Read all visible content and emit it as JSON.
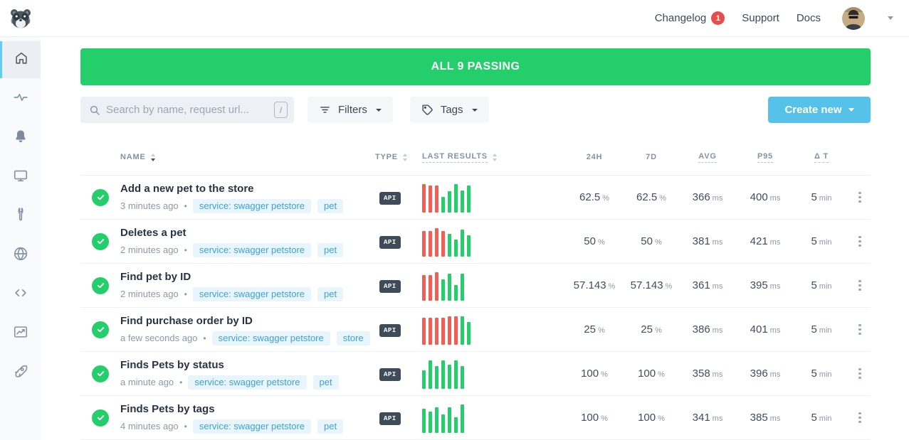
{
  "colors": {
    "green": "#23ce6b",
    "red": "#f35e54",
    "blue": "#56c2ea",
    "tag_blue": "#3ba1d8",
    "badge_red": "#e84c4c"
  },
  "header": {
    "logo": "raccoon-logo",
    "nav": [
      {
        "label": "Changelog",
        "badge": "1"
      },
      {
        "label": "Support"
      },
      {
        "label": "Docs"
      }
    ]
  },
  "sidebar": {
    "items": [
      {
        "icon": "home-icon",
        "active": true
      },
      {
        "icon": "activity-icon"
      },
      {
        "icon": "bell-icon"
      },
      {
        "icon": "monitor-icon"
      },
      {
        "icon": "wrench-icon"
      },
      {
        "icon": "globe-icon"
      },
      {
        "icon": "code-icon"
      },
      {
        "icon": "chart-icon"
      },
      {
        "icon": "rocket-icon"
      }
    ]
  },
  "banner": {
    "text": "ALL 9 PASSING"
  },
  "controls": {
    "search": {
      "placeholder": "Search by name, request url...",
      "value": "",
      "shortcut": "/"
    },
    "filters_label": "Filters",
    "tags_label": "Tags",
    "create_label": "Create new"
  },
  "table": {
    "dot": "•",
    "columns": [
      {
        "label": "NAME",
        "sortable": true,
        "sorted": "desc"
      },
      {
        "label": "TYPE",
        "sortable": true
      },
      {
        "label": "LAST RESULTS",
        "sortable": true,
        "dashed": true
      },
      {
        "label": "24H"
      },
      {
        "label": "7D"
      },
      {
        "label": "AVG",
        "dashed": true
      },
      {
        "label": "P95",
        "dashed": true
      },
      {
        "label": "Δ T",
        "dashed": true
      }
    ],
    "rows": [
      {
        "status": "passing",
        "name": "Add a new pet to the store",
        "time": "3 minutes ago",
        "tags": [
          "service: swagger petstore",
          "pet"
        ],
        "type": "API",
        "bars": [
          [
            "fail",
            1
          ],
          [
            "fail",
            0.95
          ],
          [
            "fail",
            0.95
          ],
          [
            "pass",
            0.55
          ],
          [
            "pass",
            0.75
          ],
          [
            "pass",
            1
          ],
          [
            "pass",
            0.78
          ],
          [
            "pass",
            0.95
          ]
        ],
        "h24": {
          "v": "62.5",
          "u": "%"
        },
        "d7": {
          "v": "62.5",
          "u": "%"
        },
        "avg": {
          "v": "366",
          "u": "ms"
        },
        "p95": {
          "v": "400",
          "u": "ms"
        },
        "dt": {
          "v": "5",
          "u": "min"
        }
      },
      {
        "status": "passing",
        "name": "Deletes a pet",
        "time": "2 minutes ago",
        "tags": [
          "service: swagger petstore",
          "pet"
        ],
        "type": "API",
        "bars": [
          [
            "fail",
            0.9
          ],
          [
            "fail",
            0.9
          ],
          [
            "fail",
            1
          ],
          [
            "fail",
            0.9
          ],
          [
            "pass",
            0.8
          ],
          [
            "pass",
            0.6
          ],
          [
            "pass",
            0.95
          ],
          [
            "pass",
            0.75
          ]
        ],
        "h24": {
          "v": "50",
          "u": "%"
        },
        "d7": {
          "v": "50",
          "u": "%"
        },
        "avg": {
          "v": "381",
          "u": "ms"
        },
        "p95": {
          "v": "421",
          "u": "ms"
        },
        "dt": {
          "v": "5",
          "u": "min"
        }
      },
      {
        "status": "passing",
        "name": "Find pet by ID",
        "time": "2 minutes ago",
        "tags": [
          "service: swagger petstore",
          "pet"
        ],
        "type": "API",
        "bars": [
          [
            "fail",
            0.9
          ],
          [
            "fail",
            0.9
          ],
          [
            "fail",
            1
          ],
          [
            "pass",
            0.75
          ],
          [
            "pass",
            0.95
          ],
          [
            "pass",
            0.55
          ],
          [
            "pass",
            0.95
          ]
        ],
        "h24": {
          "v": "57.143",
          "u": "%"
        },
        "d7": {
          "v": "57.143",
          "u": "%"
        },
        "avg": {
          "v": "361",
          "u": "ms"
        },
        "p95": {
          "v": "395",
          "u": "ms"
        },
        "dt": {
          "v": "5",
          "u": "min"
        }
      },
      {
        "status": "passing",
        "name": "Find purchase order by ID",
        "time": "a few seconds ago",
        "tags": [
          "service: swagger petstore",
          "store"
        ],
        "type": "API",
        "bars": [
          [
            "fail",
            0.95
          ],
          [
            "fail",
            0.95
          ],
          [
            "fail",
            0.95
          ],
          [
            "fail",
            0.95
          ],
          [
            "fail",
            1
          ],
          [
            "fail",
            1
          ],
          [
            "pass",
            1
          ],
          [
            "pass",
            0.8
          ]
        ],
        "h24": {
          "v": "25",
          "u": "%"
        },
        "d7": {
          "v": "25",
          "u": "%"
        },
        "avg": {
          "v": "386",
          "u": "ms"
        },
        "p95": {
          "v": "401",
          "u": "ms"
        },
        "dt": {
          "v": "5",
          "u": "min"
        }
      },
      {
        "status": "passing",
        "name": "Finds Pets by status",
        "time": "a minute ago",
        "tags": [
          "service: swagger petstore",
          "pet"
        ],
        "type": "API",
        "bars": [
          [
            "pass",
            0.65
          ],
          [
            "pass",
            1
          ],
          [
            "pass",
            0.8
          ],
          [
            "pass",
            1
          ],
          [
            "pass",
            0.85
          ],
          [
            "pass",
            1
          ],
          [
            "pass",
            0.8
          ]
        ],
        "h24": {
          "v": "100",
          "u": "%"
        },
        "d7": {
          "v": "100",
          "u": "%"
        },
        "avg": {
          "v": "358",
          "u": "ms"
        },
        "p95": {
          "v": "396",
          "u": "ms"
        },
        "dt": {
          "v": "5",
          "u": "min"
        }
      },
      {
        "status": "passing",
        "name": "Finds Pets by tags",
        "time": "4 minutes ago",
        "tags": [
          "service: swagger petstore",
          "pet"
        ],
        "type": "API",
        "bars": [
          [
            "pass",
            0.85
          ],
          [
            "pass",
            0.75
          ],
          [
            "pass",
            0.9
          ],
          [
            "pass",
            0.65
          ],
          [
            "pass",
            0.9
          ],
          [
            "pass",
            0.55
          ],
          [
            "pass",
            1
          ]
        ],
        "h24": {
          "v": "100",
          "u": "%"
        },
        "d7": {
          "v": "100",
          "u": "%"
        },
        "avg": {
          "v": "341",
          "u": "ms"
        },
        "p95": {
          "v": "385",
          "u": "ms"
        },
        "dt": {
          "v": "5",
          "u": "min"
        }
      }
    ]
  }
}
